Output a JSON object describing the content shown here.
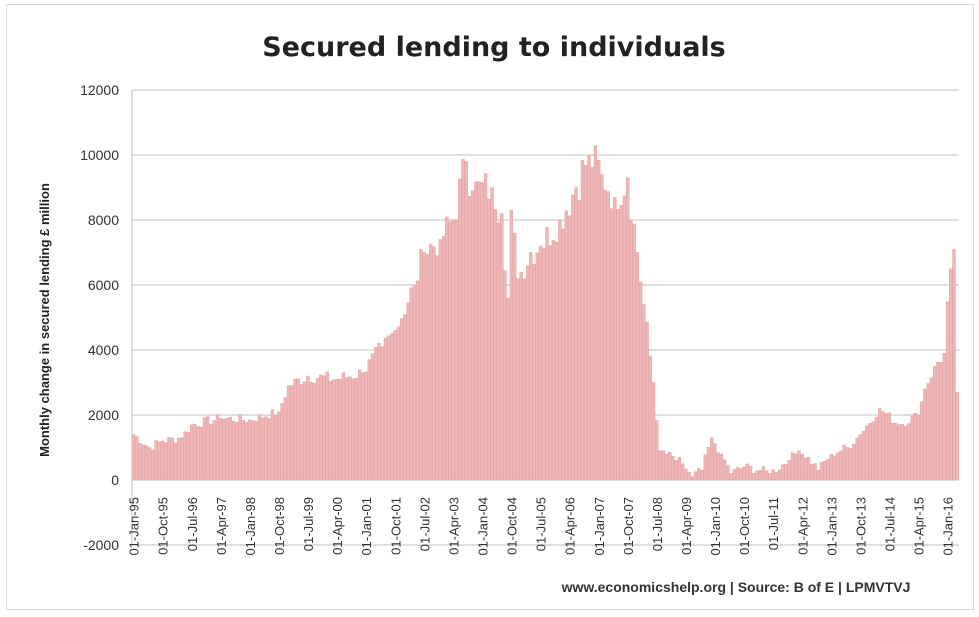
{
  "chart_data": {
    "type": "bar",
    "title": "Secured lending to individuals",
    "ylabel": "Monthly change in secured lending £ million",
    "xlabel": "",
    "ylim": [
      -2000,
      12000
    ],
    "yticks": [
      12000,
      10000,
      8000,
      6000,
      4000,
      2000,
      0,
      -2000
    ],
    "grid": "horizontal",
    "legend": "none",
    "source_note": "www.economicshelp.org | Source: B of E | LPMVTVJ",
    "bar_color": "#eeb7b7",
    "tick_labels": [
      "01-Jan-95",
      "01-Oct-95",
      "01-Jul-96",
      "01-Apr-97",
      "01-Jan-98",
      "01-Oct-98",
      "01-Jul-99",
      "01-Apr-00",
      "01-Jan-01",
      "01-Oct-01",
      "01-Jul-02",
      "01-Apr-03",
      "01-Jan-04",
      "01-Oct-04",
      "01-Jul-05",
      "01-Apr-06",
      "01-Jan-07",
      "01-Oct-07",
      "01-Jul-08",
      "01-Apr-09",
      "01-Jan-10",
      "01-Oct-10",
      "01-Jul-11",
      "01-Apr-12",
      "01-Jan-13",
      "01-Oct-13",
      "01-Jul-14",
      "01-Apr-15",
      "01-Jan-16"
    ],
    "x_start": "1995-01",
    "x_end": "2016-04",
    "anchors": [
      [
        "1995-01",
        1400
      ],
      [
        "1995-06",
        1000
      ],
      [
        "1995-10",
        1200
      ],
      [
        "1996-04",
        1300
      ],
      [
        "1996-07",
        1700
      ],
      [
        "1997-04",
        1900
      ],
      [
        "1998-01",
        1850
      ],
      [
        "1998-10",
        2100
      ],
      [
        "1999-01",
        2900
      ],
      [
        "1999-07",
        3200
      ],
      [
        "2000-04",
        3100
      ],
      [
        "2000-12",
        3300
      ],
      [
        "2001-06",
        4100
      ],
      [
        "2001-10",
        4600
      ],
      [
        "2002-04",
        6000
      ],
      [
        "2002-07",
        7000
      ],
      [
        "2002-12",
        7400
      ],
      [
        "2003-04",
        8000
      ],
      [
        "2003-08",
        9800
      ],
      [
        "2003-10",
        8900
      ],
      [
        "2004-04",
        9000
      ],
      [
        "2004-07",
        8200
      ],
      [
        "2004-09",
        5600
      ],
      [
        "2004-10",
        8300
      ],
      [
        "2004-12",
        6200
      ],
      [
        "2005-04",
        7000
      ],
      [
        "2005-07",
        7200
      ],
      [
        "2006-01",
        8000
      ],
      [
        "2006-06",
        9000
      ],
      [
        "2006-10",
        10000
      ],
      [
        "2007-02",
        9400
      ],
      [
        "2007-06",
        8700
      ],
      [
        "2007-10",
        9300
      ],
      [
        "2008-01",
        7000
      ],
      [
        "2008-03",
        5400
      ],
      [
        "2008-06",
        3000
      ],
      [
        "2008-08",
        900
      ],
      [
        "2008-10",
        800
      ],
      [
        "2009-03",
        500
      ],
      [
        "2009-06",
        100
      ],
      [
        "2009-09",
        300
      ],
      [
        "2009-12",
        1300
      ],
      [
        "2010-03",
        800
      ],
      [
        "2010-06",
        200
      ],
      [
        "2010-10",
        400
      ],
      [
        "2011-03",
        300
      ],
      [
        "2011-06",
        200
      ],
      [
        "2011-12",
        600
      ],
      [
        "2012-03",
        900
      ],
      [
        "2012-06",
        700
      ],
      [
        "2012-09",
        300
      ],
      [
        "2013-01",
        800
      ],
      [
        "2013-06",
        1000
      ],
      [
        "2013-10",
        1400
      ],
      [
        "2014-04",
        2200
      ],
      [
        "2014-10",
        1700
      ],
      [
        "2015-04",
        2000
      ],
      [
        "2015-06",
        2800
      ],
      [
        "2015-09",
        3500
      ],
      [
        "2015-12",
        3900
      ],
      [
        "2016-02",
        6500
      ],
      [
        "2016-03",
        7100
      ],
      [
        "2016-04",
        2700
      ]
    ]
  }
}
